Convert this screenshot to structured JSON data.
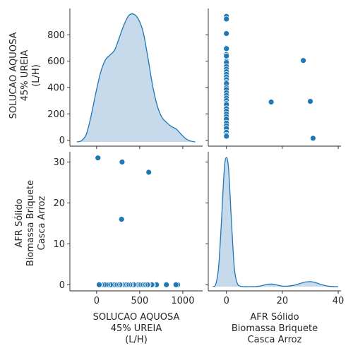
{
  "chart_data": {
    "type": "scatter",
    "variables": [
      {
        "id": "sol",
        "label": [
          "SOLUCAO AQUOSA",
          "45% UREIA",
          "(L/H)"
        ]
      },
      {
        "id": "afr",
        "label": [
          "AFR Sólido",
          "Biomassa Briquete",
          "Casca Arroz"
        ]
      }
    ],
    "colors": {
      "marker": "#1f77b4",
      "kde_line": "#1f77b4",
      "kde_fill": "#c4d8ea",
      "axis": "#262626"
    },
    "axes": {
      "sol_x": {
        "lim": [
          -310,
          1230
        ],
        "ticks": [
          0,
          500,
          1000
        ]
      },
      "sol_y": {
        "lim": [
          -45,
          1000
        ],
        "ticks": [
          0,
          200,
          400,
          600,
          800
        ]
      },
      "afr_x": {
        "lim": [
          -6.5,
          41
        ],
        "ticks": [
          0,
          20,
          40
        ]
      },
      "afr_y": {
        "lim": [
          -1.5,
          32.5
        ],
        "ticks": [
          0,
          10,
          20,
          30
        ]
      }
    },
    "kde_sol": {
      "x": [
        -230,
        -175,
        -120,
        -65,
        -10,
        45,
        100,
        155,
        210,
        265,
        320,
        375,
        430,
        485,
        540,
        595,
        650,
        705,
        760,
        815,
        870,
        925,
        980,
        1035,
        1090,
        1145
      ],
      "density": [
        0.0,
        0.01,
        0.06,
        0.2,
        0.38,
        0.54,
        0.64,
        0.68,
        0.72,
        0.82,
        0.92,
        0.99,
        1.0,
        0.96,
        0.86,
        0.66,
        0.44,
        0.28,
        0.19,
        0.15,
        0.12,
        0.1,
        0.06,
        0.025,
        0.007,
        0.0
      ]
    },
    "kde_afr": {
      "x": [
        -4.8,
        -3.8,
        -2.8,
        -1.8,
        -0.8,
        0,
        0.8,
        1.8,
        2.8,
        3.8,
        4.8,
        6,
        8,
        10,
        12,
        14,
        16,
        18,
        20,
        22,
        24,
        26,
        28,
        30,
        32,
        34,
        36,
        38,
        40
      ],
      "density": [
        0.0,
        0.02,
        0.15,
        0.5,
        0.9,
        1.0,
        0.9,
        0.5,
        0.15,
        0.03,
        0.005,
        0.0,
        0.0,
        0.0,
        0.004,
        0.015,
        0.02,
        0.013,
        0.004,
        0.004,
        0.01,
        0.022,
        0.035,
        0.039,
        0.03,
        0.016,
        0.005,
        0.001,
        0.0
      ]
    },
    "points": [
      {
        "sol": 940,
        "afr": 0
      },
      {
        "sol": 920,
        "afr": 0
      },
      {
        "sol": 810,
        "afr": 0
      },
      {
        "sol": 700,
        "afr": 0
      },
      {
        "sol": 695,
        "afr": 0
      },
      {
        "sol": 650,
        "afr": 0
      },
      {
        "sol": 640,
        "afr": 0
      },
      {
        "sol": 600,
        "afr": 0
      },
      {
        "sol": 590,
        "afr": 0
      },
      {
        "sol": 560,
        "afr": 0
      },
      {
        "sol": 540,
        "afr": 0
      },
      {
        "sol": 520,
        "afr": 0
      },
      {
        "sol": 500,
        "afr": 0
      },
      {
        "sol": 480,
        "afr": 0
      },
      {
        "sol": 460,
        "afr": 0
      },
      {
        "sol": 440,
        "afr": 0
      },
      {
        "sol": 430,
        "afr": 0
      },
      {
        "sol": 400,
        "afr": 0
      },
      {
        "sol": 385,
        "afr": 0
      },
      {
        "sol": 360,
        "afr": 0
      },
      {
        "sol": 340,
        "afr": 0
      },
      {
        "sol": 320,
        "afr": 0
      },
      {
        "sol": 300,
        "afr": 0
      },
      {
        "sol": 280,
        "afr": 0
      },
      {
        "sol": 270,
        "afr": 0
      },
      {
        "sol": 240,
        "afr": 0
      },
      {
        "sol": 220,
        "afr": 0
      },
      {
        "sol": 200,
        "afr": 0
      },
      {
        "sol": 180,
        "afr": 0
      },
      {
        "sol": 160,
        "afr": 0
      },
      {
        "sol": 130,
        "afr": 0
      },
      {
        "sol": 110,
        "afr": 0
      },
      {
        "sol": 90,
        "afr": 0
      },
      {
        "sol": 60,
        "afr": 0
      },
      {
        "sol": 40,
        "afr": 0
      },
      {
        "sol": 30,
        "afr": 0
      },
      {
        "sol": 15,
        "afr": 31
      },
      {
        "sol": 290,
        "afr": 16
      },
      {
        "sol": 295,
        "afr": 30
      },
      {
        "sol": 605,
        "afr": 27.5
      }
    ]
  }
}
